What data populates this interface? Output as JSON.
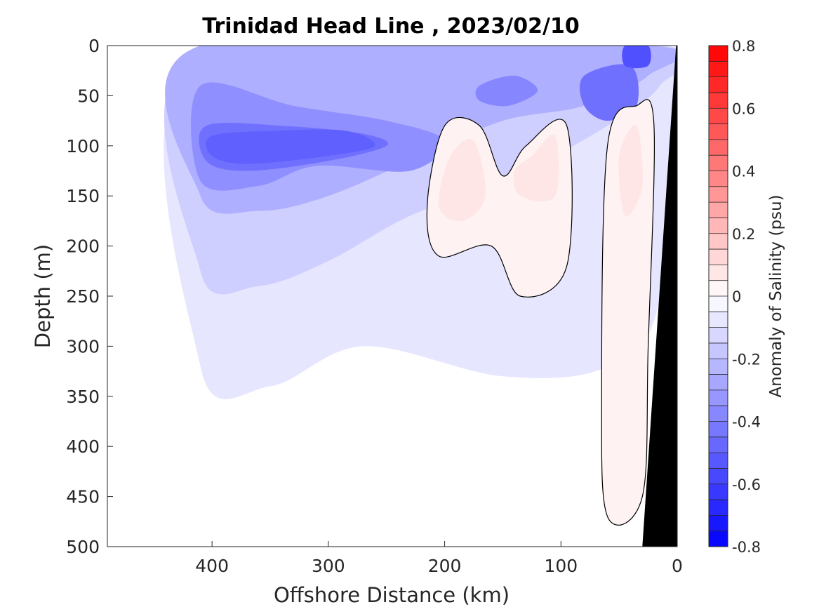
{
  "chart_data": {
    "type": "heatmap",
    "title": "Trinidad Head Line , 2023/02/10",
    "xlabel": "Offshore Distance (km)",
    "ylabel": "Depth (m)",
    "colorbar_label": "Anomaly of Salinity (psu)",
    "xlim": [
      490,
      0
    ],
    "ylim": [
      0,
      500
    ],
    "x_ticks": [
      400,
      300,
      200,
      100,
      0
    ],
    "y_ticks": [
      0,
      50,
      100,
      150,
      200,
      250,
      300,
      350,
      400,
      450,
      500
    ],
    "clim": [
      -0.8,
      0.8
    ],
    "colorbar_ticks": [
      0.8,
      0.6,
      0.4,
      0.2,
      0,
      -0.2,
      -0.4,
      -0.6,
      -0.8
    ],
    "colorbar_levels": 32,
    "zero_contour": true,
    "bathymetry_fill": "#000000",
    "regions": [
      {
        "anomaly": -0.08,
        "outline": [
          [
            410,
            0
          ],
          [
            15,
            0
          ],
          [
            15,
            250
          ],
          [
            60,
            320
          ],
          [
            150,
            330
          ],
          [
            270,
            300
          ],
          [
            350,
            340
          ],
          [
            410,
            320
          ]
        ]
      },
      {
        "anomaly": -0.15,
        "outline": [
          [
            410,
            0
          ],
          [
            15,
            0
          ],
          [
            15,
            40
          ],
          [
            60,
            80
          ],
          [
            140,
            130
          ],
          [
            230,
            170
          ],
          [
            300,
            215
          ],
          [
            360,
            240
          ],
          [
            410,
            225
          ]
        ]
      },
      {
        "anomaly": -0.25,
        "outline": [
          [
            410,
            0
          ],
          [
            25,
            0
          ],
          [
            25,
            30
          ],
          [
            80,
            60
          ],
          [
            150,
            75
          ],
          [
            220,
            110
          ],
          [
            300,
            150
          ],
          [
            360,
            165
          ],
          [
            410,
            150
          ]
        ]
      },
      {
        "anomaly": -0.35,
        "outline": [
          [
            410,
            40
          ],
          [
            330,
            60
          ],
          [
            250,
            75
          ],
          [
            200,
            95
          ],
          [
            230,
            125
          ],
          [
            310,
            120
          ],
          [
            360,
            140
          ],
          [
            410,
            135
          ]
        ]
      },
      {
        "anomaly": -0.45,
        "outline": [
          [
            405,
            80
          ],
          [
            340,
            80
          ],
          [
            270,
            88
          ],
          [
            250,
            100
          ],
          [
            300,
            115
          ],
          [
            370,
            125
          ],
          [
            405,
            115
          ]
        ]
      },
      {
        "anomaly": -0.5,
        "outline": [
          [
            400,
            90
          ],
          [
            345,
            85
          ],
          [
            285,
            85
          ],
          [
            260,
            100
          ],
          [
            300,
            110
          ],
          [
            370,
            118
          ],
          [
            400,
            110
          ]
        ]
      },
      {
        "anomaly": -0.38,
        "outline": [
          [
            170,
            40
          ],
          [
            140,
            30
          ],
          [
            120,
            45
          ],
          [
            145,
            60
          ],
          [
            170,
            55
          ]
        ]
      },
      {
        "anomaly": -0.45,
        "outline": [
          [
            80,
            30
          ],
          [
            40,
            20
          ],
          [
            35,
            60
          ],
          [
            60,
            75
          ],
          [
            80,
            60
          ]
        ]
      },
      {
        "anomaly": -0.55,
        "outline": [
          [
            45,
            0
          ],
          [
            25,
            0
          ],
          [
            25,
            20
          ],
          [
            45,
            20
          ]
        ]
      },
      {
        "anomaly": 0.04,
        "outline": [
          [
            215,
            160
          ],
          [
            200,
            80
          ],
          [
            170,
            80
          ],
          [
            150,
            130
          ],
          [
            130,
            100
          ],
          [
            95,
            80
          ],
          [
            95,
            220
          ],
          [
            135,
            250
          ],
          [
            160,
            200
          ],
          [
            205,
            210
          ]
        ]
      },
      {
        "anomaly": 0.04,
        "outline": [
          [
            65,
            350
          ],
          [
            60,
            100
          ],
          [
            35,
            60
          ],
          [
            20,
            80
          ],
          [
            25,
            300
          ],
          [
            30,
            450
          ],
          [
            60,
            470
          ]
        ]
      },
      {
        "anomaly": 0.08,
        "outline": [
          [
            195,
            110
          ],
          [
            175,
            95
          ],
          [
            165,
            150
          ],
          [
            185,
            175
          ],
          [
            205,
            160
          ]
        ]
      },
      {
        "anomaly": 0.08,
        "outline": [
          [
            125,
            110
          ],
          [
            105,
            90
          ],
          [
            105,
            150
          ],
          [
            135,
            150
          ],
          [
            140,
            125
          ]
        ]
      },
      {
        "anomaly": 0.08,
        "outline": [
          [
            50,
            110
          ],
          [
            35,
            80
          ],
          [
            30,
            140
          ],
          [
            45,
            170
          ]
        ]
      }
    ]
  }
}
